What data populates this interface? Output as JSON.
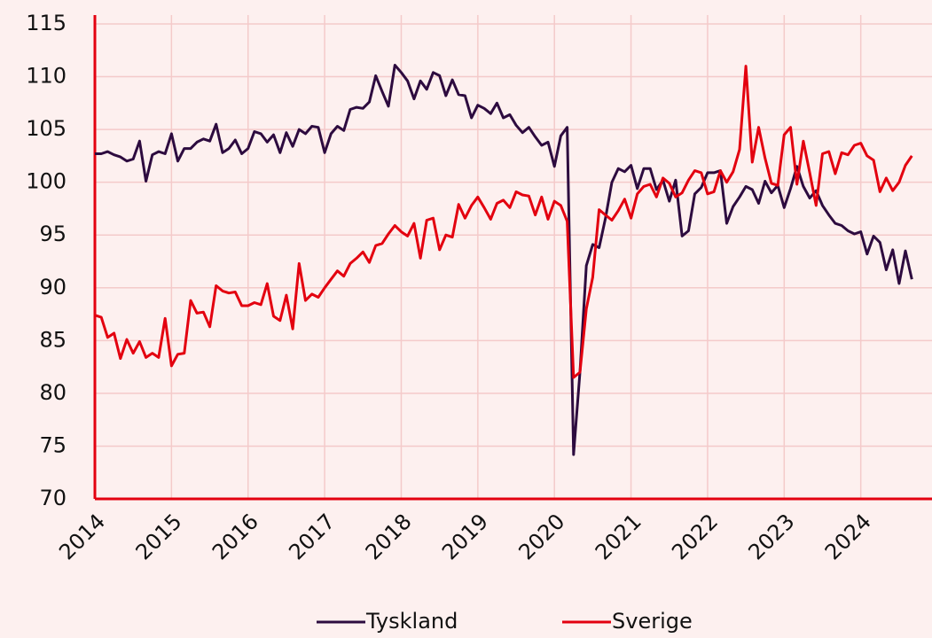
{
  "chart_data": {
    "type": "line",
    "x": [
      2014,
      2014.083,
      2014.167,
      2014.25,
      2014.333,
      2014.417,
      2014.5,
      2014.583,
      2014.667,
      2014.75,
      2014.833,
      2014.917,
      2015,
      2015.083,
      2015.167,
      2015.25,
      2015.333,
      2015.417,
      2015.5,
      2015.583,
      2015.667,
      2015.75,
      2015.833,
      2015.917,
      2016,
      2016.083,
      2016.167,
      2016.25,
      2016.333,
      2016.417,
      2016.5,
      2016.583,
      2016.667,
      2016.75,
      2016.833,
      2016.917,
      2017,
      2017.083,
      2017.167,
      2017.25,
      2017.333,
      2017.417,
      2017.5,
      2017.583,
      2017.667,
      2017.75,
      2017.833,
      2017.917,
      2018,
      2018.083,
      2018.167,
      2018.25,
      2018.333,
      2018.417,
      2018.5,
      2018.583,
      2018.667,
      2018.75,
      2018.833,
      2018.917,
      2019,
      2019.083,
      2019.167,
      2019.25,
      2019.333,
      2019.417,
      2019.5,
      2019.583,
      2019.667,
      2019.75,
      2019.833,
      2019.917,
      2020,
      2020.083,
      2020.167,
      2020.25,
      2020.333,
      2020.417,
      2020.5,
      2020.583,
      2020.667,
      2020.75,
      2020.833,
      2020.917,
      2021,
      2021.083,
      2021.167,
      2021.25,
      2021.333,
      2021.417,
      2021.5,
      2021.583,
      2021.667,
      2021.75,
      2021.833,
      2021.917,
      2022,
      2022.083,
      2022.167,
      2022.25,
      2022.333,
      2022.417,
      2022.5,
      2022.583,
      2022.667,
      2022.75,
      2022.833,
      2022.917,
      2023,
      2023.083,
      2023.167,
      2023.25,
      2023.333,
      2023.417,
      2023.5,
      2023.583,
      2023.667,
      2023.75,
      2023.833,
      2023.917,
      2024,
      2024.083,
      2024.167,
      2024.25,
      2024.333,
      2024.417,
      2024.5,
      2024.583,
      2024.667
    ],
    "series": [
      {
        "name": "Tyskland",
        "color": "#2d0b3f",
        "values": [
          102.7,
          102.7,
          102.9,
          102.6,
          102.4,
          102.0,
          102.2,
          103.9,
          100.1,
          102.6,
          102.9,
          102.7,
          104.6,
          102.0,
          103.2,
          103.2,
          103.8,
          104.1,
          103.9,
          105.5,
          102.8,
          103.2,
          104.0,
          102.7,
          103.2,
          104.8,
          104.6,
          103.8,
          104.5,
          102.8,
          104.7,
          103.4,
          105.0,
          104.6,
          105.3,
          105.2,
          102.8,
          104.6,
          105.3,
          104.9,
          106.9,
          107.1,
          107.0,
          107.6,
          110.1,
          108.6,
          107.2,
          111.1,
          110.4,
          109.6,
          107.9,
          109.6,
          108.8,
          110.4,
          110.1,
          108.2,
          109.7,
          108.3,
          108.2,
          106.1,
          107.3,
          107.0,
          106.5,
          107.5,
          106.1,
          106.4,
          105.4,
          104.7,
          105.2,
          104.3,
          103.5,
          103.8,
          101.5,
          104.4,
          105.2,
          74.2,
          82.0,
          92.1,
          94.1,
          93.8,
          96.6,
          100.0,
          101.3,
          101.0,
          101.6,
          99.4,
          101.3,
          101.3,
          99.3,
          100.2,
          98.2,
          100.2,
          94.9,
          95.4,
          98.9,
          99.5,
          100.9,
          100.9,
          101.1,
          96.1,
          97.7,
          98.6,
          99.6,
          99.3,
          98.0,
          100.1,
          99.0,
          99.7,
          97.6,
          99.4,
          101.5,
          99.6,
          98.5,
          99.2,
          97.8,
          96.9,
          96.1,
          95.9,
          95.4,
          95.1,
          95.3,
          93.2,
          94.9,
          94.3,
          91.7,
          93.6,
          90.4,
          93.5,
          90.8
        ]
      },
      {
        "name": "Sverige",
        "color": "#e3000f",
        "values": [
          87.4,
          87.2,
          85.3,
          85.7,
          83.3,
          85.1,
          83.8,
          84.9,
          83.4,
          83.8,
          83.4,
          87.1,
          82.6,
          83.7,
          83.8,
          88.8,
          87.6,
          87.7,
          86.3,
          90.2,
          89.7,
          89.5,
          89.6,
          88.3,
          88.3,
          88.6,
          88.4,
          90.4,
          87.3,
          86.9,
          89.3,
          86.1,
          92.3,
          88.8,
          89.4,
          89.1,
          90.0,
          90.8,
          91.6,
          91.1,
          92.3,
          92.8,
          93.4,
          92.4,
          94.0,
          94.2,
          95.1,
          95.9,
          95.3,
          94.9,
          96.1,
          92.8,
          96.4,
          96.6,
          93.6,
          95.0,
          94.8,
          97.9,
          96.6,
          97.8,
          98.6,
          97.6,
          96.5,
          98.0,
          98.3,
          97.6,
          99.1,
          98.8,
          98.7,
          96.9,
          98.6,
          96.5,
          98.2,
          97.8,
          96.3,
          81.5,
          82.0,
          88.0,
          91.0,
          97.4,
          96.9,
          96.4,
          97.3,
          98.4,
          96.6,
          98.9,
          99.6,
          99.8,
          98.6,
          100.4,
          99.9,
          98.6,
          99.0,
          100.2,
          101.1,
          100.9,
          98.9,
          99.1,
          101.1,
          100.0,
          101.0,
          103.1,
          111.0,
          101.9,
          105.2,
          102.3,
          99.9,
          99.7,
          104.5,
          105.2,
          99.8,
          103.9,
          100.9,
          97.8,
          102.7,
          102.9,
          100.8,
          102.8,
          102.6,
          103.5,
          103.7,
          102.5,
          102.1,
          99.1,
          100.4,
          99.2,
          100.0,
          101.6,
          102.5
        ]
      }
    ],
    "xlim": [
      2014,
      2024.93
    ],
    "xticks": [
      2014,
      2015,
      2016,
      2017,
      2018,
      2019,
      2020,
      2021,
      2022,
      2023,
      2024
    ],
    "ylim": [
      70,
      115
    ],
    "yticks": [
      70,
      75,
      80,
      85,
      90,
      95,
      100,
      105,
      110,
      115
    ],
    "grid": true,
    "legend": "bottom"
  }
}
